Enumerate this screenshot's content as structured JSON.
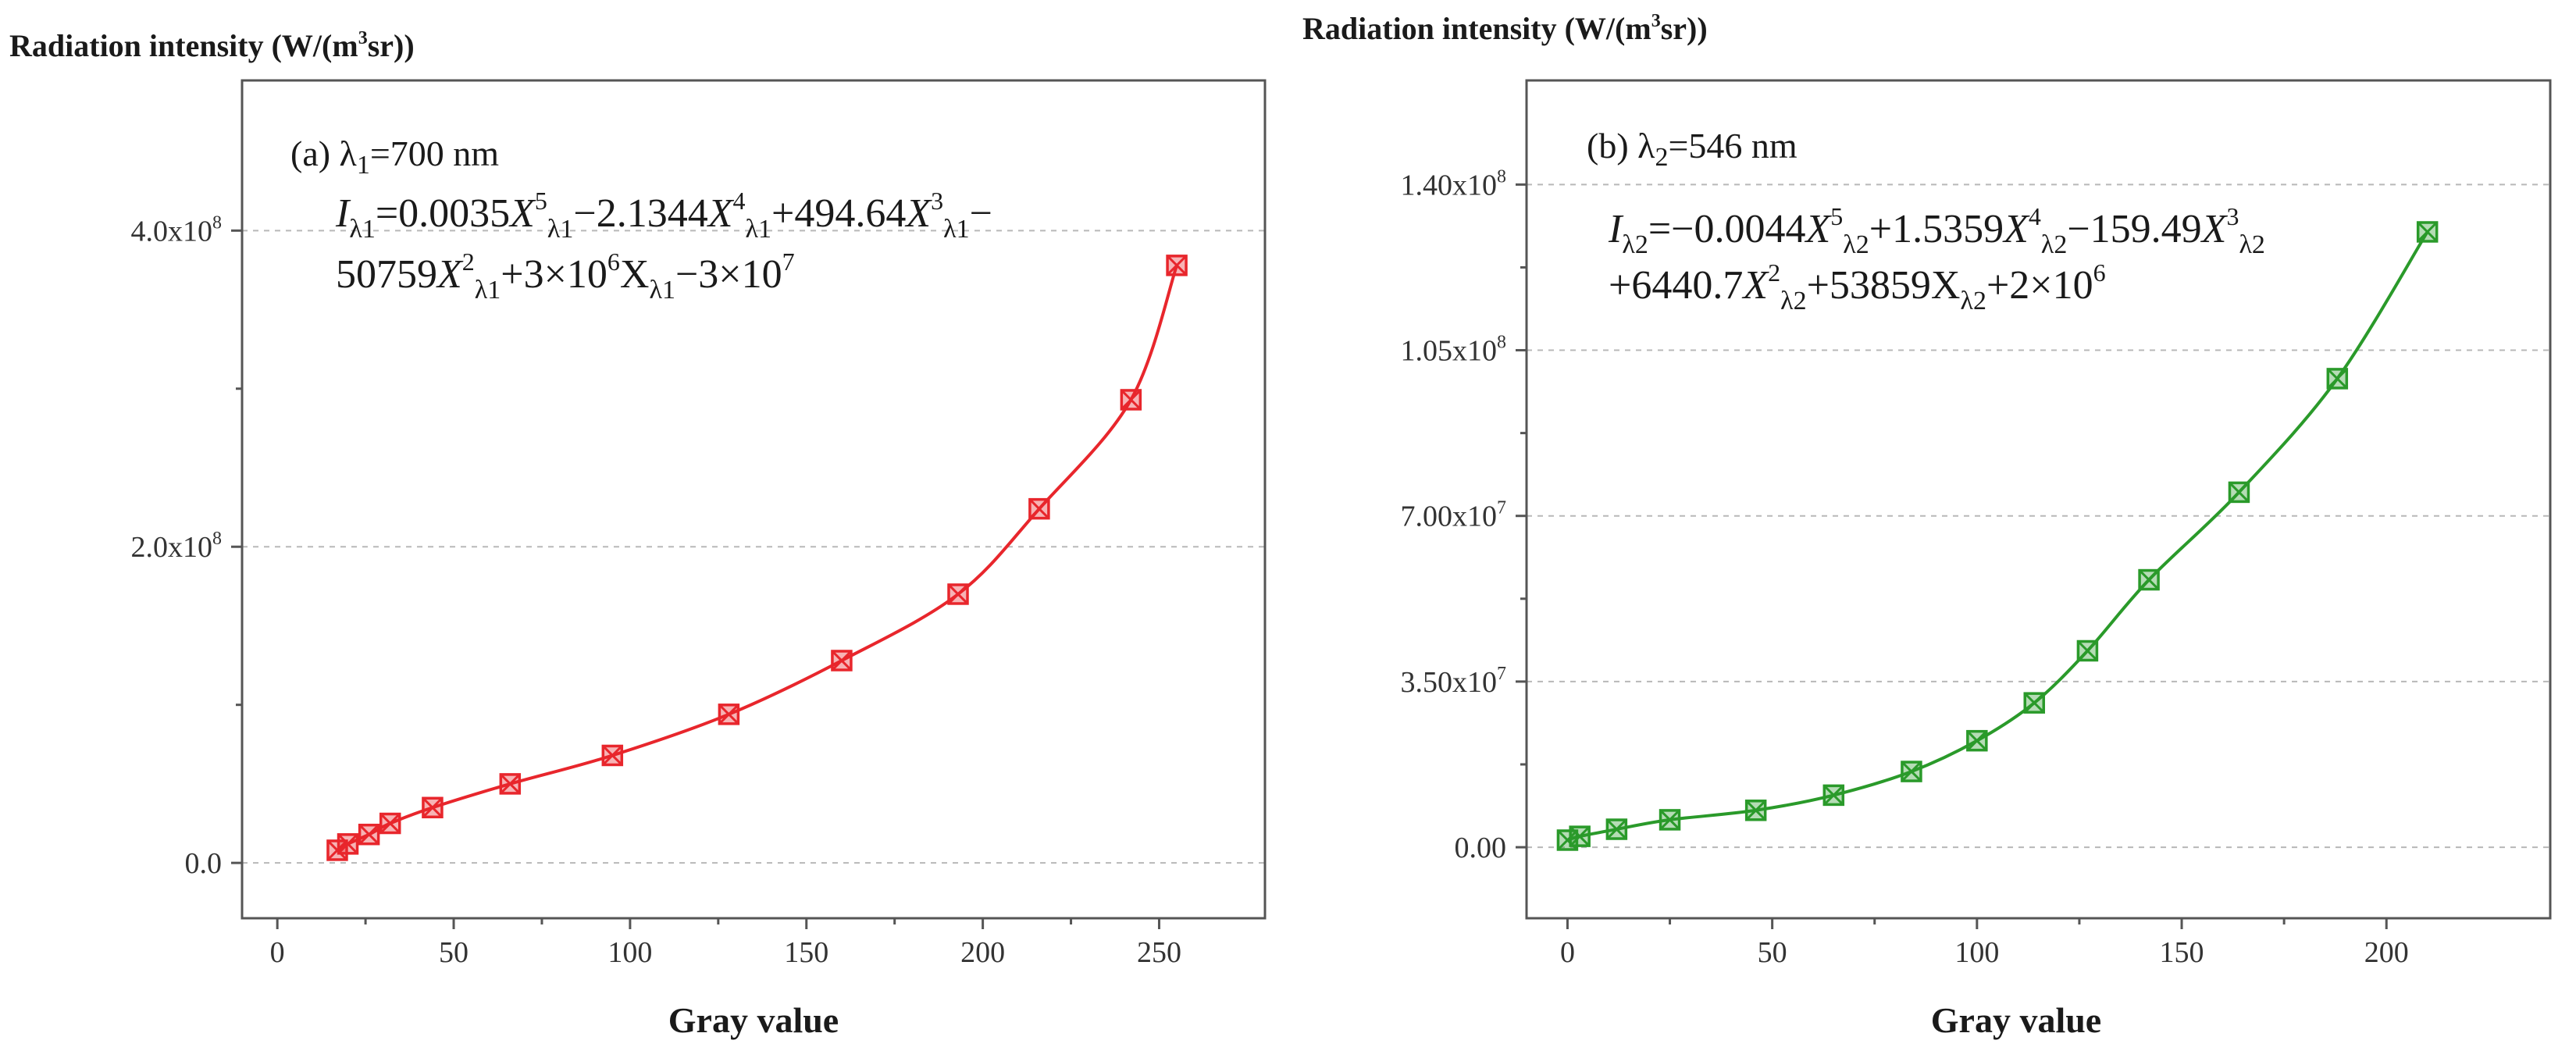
{
  "chart_data": [
    {
      "type": "scatter",
      "panel_label": "(a) λ",
      "panel_label_sub": "1",
      "panel_label_rest": "=700 nm",
      "ylabel_main": "Radiation intensity (W/(m",
      "ylabel_sup": "3",
      "ylabel_end": "sr))",
      "xlabel": "Gray value",
      "xlim": [
        -10,
        280
      ],
      "ylim": [
        -35000000.0,
        495000000.0
      ],
      "xticks": [
        0,
        50,
        100,
        150,
        200,
        250
      ],
      "xtick_labels": [
        "0",
        "50",
        "100",
        "150",
        "200",
        "250"
      ],
      "yticks": [
        0,
        200000000,
        400000000
      ],
      "ytick_labels": [
        {
          "mant": "0.0",
          "exp": ""
        },
        {
          "mant": "2.0x10",
          "exp": "8"
        },
        {
          "mant": "4.0x10",
          "exp": "8"
        }
      ],
      "minor_yticks": [
        100000000,
        300000000
      ],
      "grid": "horizontal dashed",
      "color": "#e8262c",
      "marker": "crossed-square",
      "fit_type": "5th-order polynomial",
      "fit_coefficients": {
        "a5": 0.0035,
        "a4": -2.1344,
        "a3": 494.64,
        "a2": -50759,
        "a1": 3000000,
        "a0": -30000000
      },
      "equation_line1": [
        {
          "t": "I",
          "i": true
        },
        {
          "t": "λ1",
          "sub": true
        },
        {
          "t": "=0.0035"
        },
        {
          "t": "X",
          "i": true
        },
        {
          "t": "5",
          "sup": true
        },
        {
          "t": "λ1",
          "sub": true
        },
        {
          "t": "−2.1344"
        },
        {
          "t": "X",
          "i": true
        },
        {
          "t": "4",
          "sup": true
        },
        {
          "t": "λ1",
          "sub": true
        },
        {
          "t": "+494.64"
        },
        {
          "t": "X",
          "i": true
        },
        {
          "t": "3",
          "sup": true
        },
        {
          "t": "λ1",
          "sub": true
        },
        {
          "t": "−"
        }
      ],
      "equation_line2": [
        {
          "t": "50759"
        },
        {
          "t": "X",
          "i": true
        },
        {
          "t": "2",
          "sup": true
        },
        {
          "t": "λ1",
          "sub": true
        },
        {
          "t": "+3×10"
        },
        {
          "t": "6",
          "sup": true
        },
        {
          "t": "X"
        },
        {
          "t": "λ1",
          "sub": true
        },
        {
          "t": "−3×10"
        },
        {
          "t": "7",
          "sup": true
        }
      ],
      "series": [
        {
          "x": [
            17,
            20,
            26,
            32,
            44,
            66,
            95,
            128,
            160,
            193,
            216,
            242,
            255
          ],
          "y": [
            8000000,
            12000000,
            18000000,
            25000000,
            35000000,
            50000000,
            68000000,
            94000000,
            128000000,
            170000000,
            224000000,
            293000000,
            378000000
          ]
        }
      ],
      "fit_x_range": [
        15,
        257
      ]
    },
    {
      "type": "scatter",
      "panel_label": "(b) λ",
      "panel_label_sub": "2",
      "panel_label_rest": "=546 nm",
      "ylabel_main": "Radiation intensity (W/(m",
      "ylabel_sup": "3",
      "ylabel_end": "sr))",
      "xlabel": "Gray value",
      "xlim": [
        -10,
        240
      ],
      "ylim": [
        -15000000,
        162000000
      ],
      "xticks": [
        0,
        50,
        100,
        150,
        200
      ],
      "xtick_labels": [
        "0",
        "50",
        "100",
        "150",
        "200"
      ],
      "yticks": [
        0,
        35000000,
        70000000,
        105000000,
        140000000
      ],
      "ytick_labels": [
        {
          "mant": "0.00",
          "exp": ""
        },
        {
          "mant": "3.50x10",
          "exp": "7"
        },
        {
          "mant": "7.00x10",
          "exp": "7"
        },
        {
          "mant": "1.05x10",
          "exp": "8"
        },
        {
          "mant": "1.40x10",
          "exp": "8"
        }
      ],
      "minor_yticks": [
        17500000,
        52500000,
        87500000,
        122500000
      ],
      "grid": "horizontal dashed",
      "color": "#2a9a2a",
      "marker": "crossed-square",
      "fit_type": "5th-order polynomial",
      "fit_coefficients": {
        "a5": -0.0044,
        "a4": 1.5359,
        "a3": -159.49,
        "a2": 6440.7,
        "a1": 53859,
        "a0": 2000000
      },
      "equation_line1": [
        {
          "t": "I",
          "i": true
        },
        {
          "t": "λ2",
          "sub": true
        },
        {
          "t": "=−0.0044"
        },
        {
          "t": "X",
          "i": true
        },
        {
          "t": "5",
          "sup": true
        },
        {
          "t": "λ2",
          "sub": true
        },
        {
          "t": "+1.5359"
        },
        {
          "t": "X",
          "i": true
        },
        {
          "t": "4",
          "sup": true
        },
        {
          "t": "λ2",
          "sub": true
        },
        {
          "t": "−159.49"
        },
        {
          "t": "X",
          "i": true
        },
        {
          "t": "3",
          "sup": true
        },
        {
          "t": "λ2",
          "sub": true
        }
      ],
      "equation_line2": [
        {
          "t": "+6440.7"
        },
        {
          "t": "X",
          "i": true
        },
        {
          "t": "2",
          "sup": true
        },
        {
          "t": "λ2",
          "sub": true
        },
        {
          "t": "+53859X"
        },
        {
          "t": "λ2",
          "sub": true
        },
        {
          "t": "+2×10"
        },
        {
          "t": "6",
          "sup": true
        }
      ],
      "series": [
        {
          "x": [
            0,
            3,
            12,
            25,
            46,
            65,
            84,
            100,
            114,
            127,
            142,
            164,
            188,
            210
          ],
          "y": [
            1500000,
            2300000,
            3800000,
            5800000,
            7800000,
            11000000,
            16000000,
            22500000,
            30500000,
            41500000,
            56500000,
            75000000,
            99000000,
            130000000
          ]
        }
      ],
      "fit_x_range": [
        0,
        210
      ]
    }
  ]
}
